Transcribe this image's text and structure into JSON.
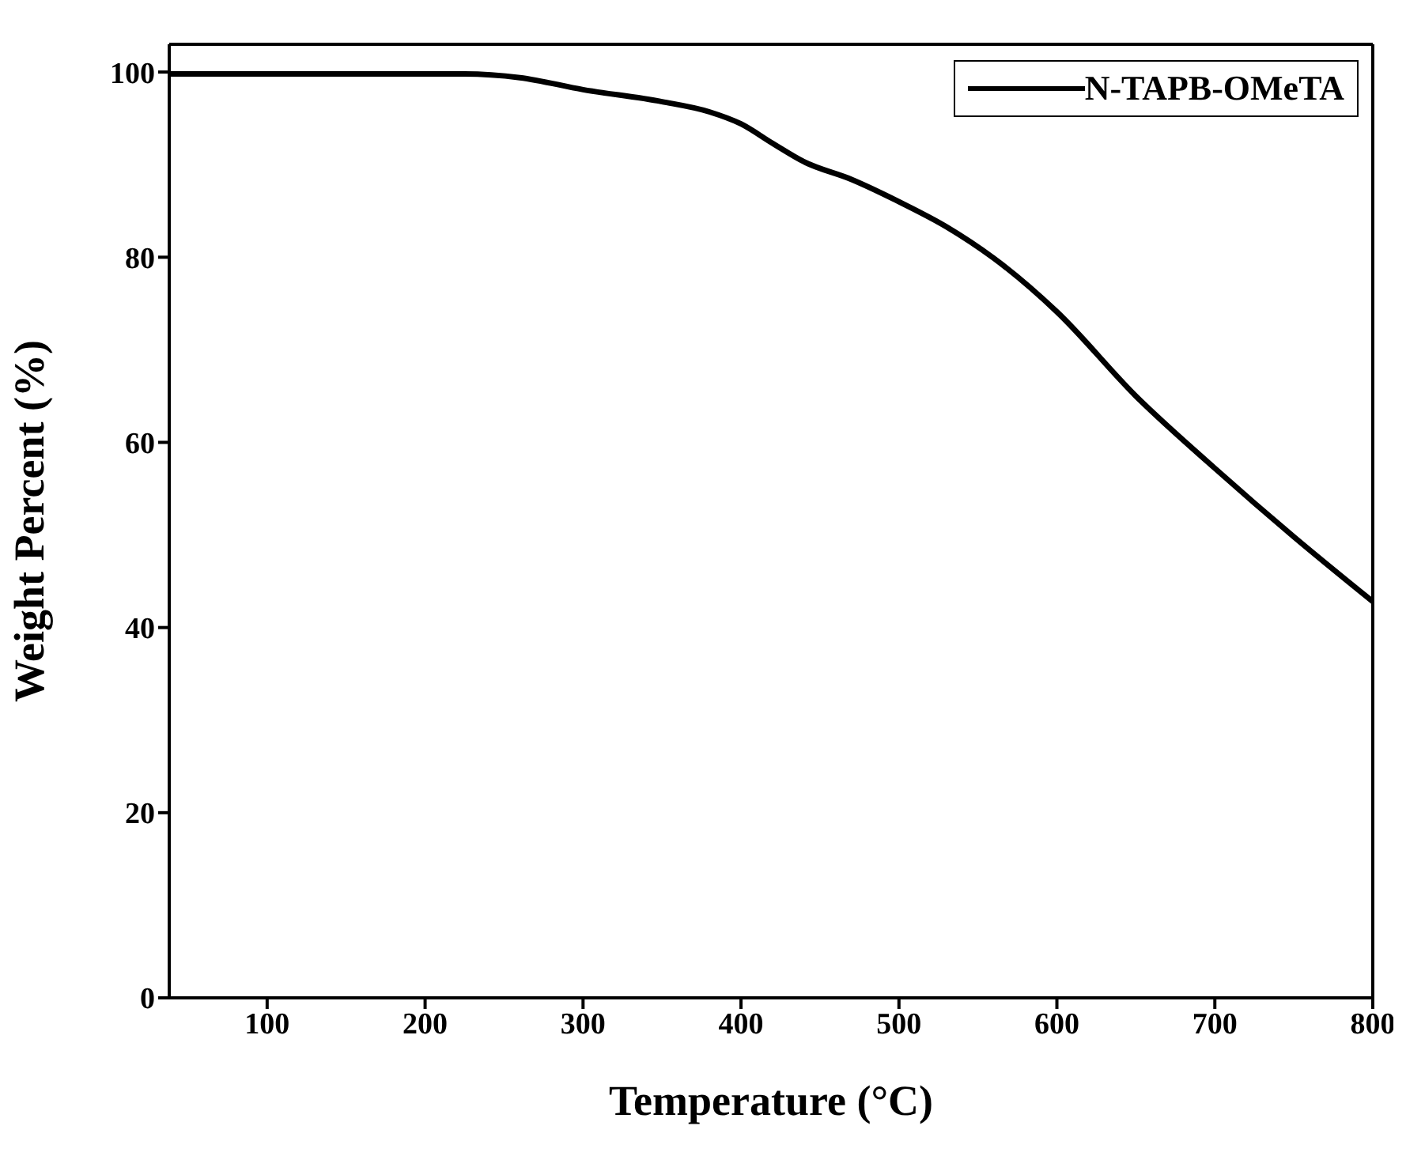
{
  "chart_data": {
    "type": "line",
    "xlabel": "Temperature (°C)",
    "ylabel": "Weight Percent (%)",
    "x": [
      38,
      100,
      150,
      225,
      260,
      300,
      350,
      380,
      400,
      420,
      440,
      470,
      500,
      530,
      560,
      600,
      650,
      700,
      750,
      800
    ],
    "series": [
      {
        "name": "N-TAPB-OMeTA",
        "color": "#000000",
        "values": [
          99.8,
          99.8,
          99.8,
          99.8,
          99.4,
          98.1,
          96.8,
          95.7,
          94.4,
          92.3,
          90.3,
          88.4,
          86,
          83.3,
          79.9,
          74.1,
          65,
          57.2,
          49.8,
          42.8
        ]
      }
    ],
    "xlim": [
      38,
      800
    ],
    "xticks": [
      100,
      200,
      300,
      400,
      500,
      600,
      700,
      800
    ],
    "ylim": [
      0,
      103
    ],
    "yticks": [
      0,
      20,
      40,
      60,
      80,
      100
    ],
    "grid": false,
    "legend": "top right",
    "marker": "none",
    "line_style": "solid"
  }
}
